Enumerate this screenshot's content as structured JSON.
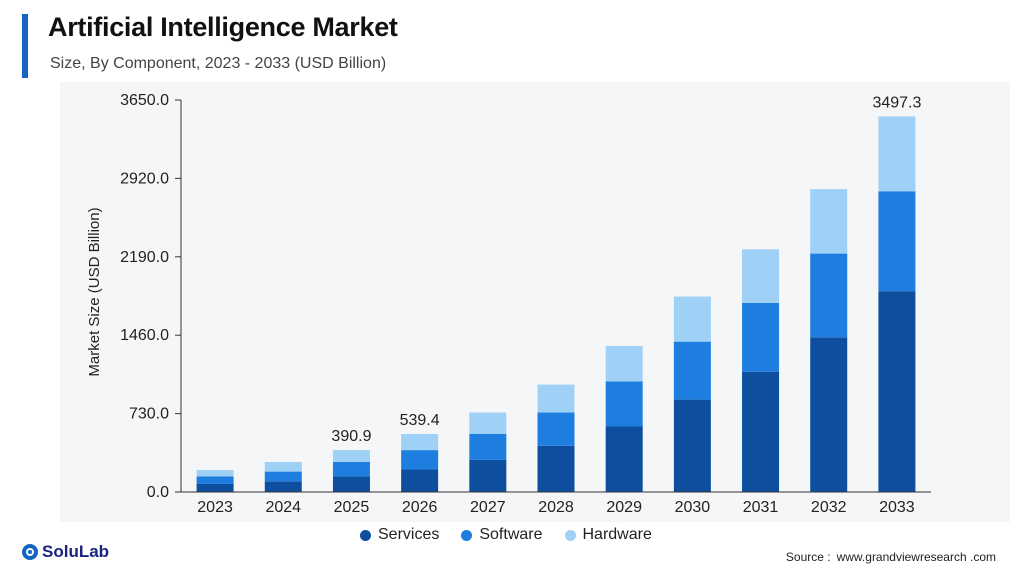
{
  "header": {
    "title": "Artificial Intelligence Market",
    "subtitle": "Size, By Component, 2023 - 2033 (USD Billion)"
  },
  "brand": {
    "name": "SoluLab",
    "icon": "solulab-logo-icon"
  },
  "source": {
    "label": "Source :",
    "text": "www.grandviewresearch .com"
  },
  "colors": {
    "accent": "#1565c0",
    "services": "#0d4f9e",
    "software": "#1e7ee0",
    "hardware": "#9fd0f5"
  },
  "chart_data": {
    "type": "bar",
    "stacked": true,
    "title": "",
    "xlabel": "",
    "ylabel": "Market Size (USD Billion)",
    "ylim": [
      0,
      3650
    ],
    "yticks": [
      "0.0",
      "730.0",
      "1460.0",
      "2190.0",
      "2920.0",
      "3650.0"
    ],
    "categories": [
      "2023",
      "2024",
      "2025",
      "2026",
      "2027",
      "2028",
      "2029",
      "2030",
      "2031",
      "2032",
      "2033"
    ],
    "series": [
      {
        "name": "Services",
        "values": [
          75,
          100,
          145,
          210,
          300,
          430,
          610,
          860,
          1120,
          1440,
          1870
        ]
      },
      {
        "name": "Software",
        "values": [
          70,
          90,
          135,
          180,
          240,
          310,
          420,
          540,
          640,
          780,
          930
        ]
      },
      {
        "name": "Hardware",
        "values": [
          60,
          90,
          110,
          150,
          200,
          260,
          330,
          420,
          500,
          600,
          697
        ]
      }
    ],
    "data_labels": [
      {
        "category": "2025",
        "text": "390.9"
      },
      {
        "category": "2026",
        "text": "539.4"
      },
      {
        "category": "2033",
        "text": "3497.3"
      }
    ],
    "grid": false,
    "legend_position": "bottom"
  }
}
